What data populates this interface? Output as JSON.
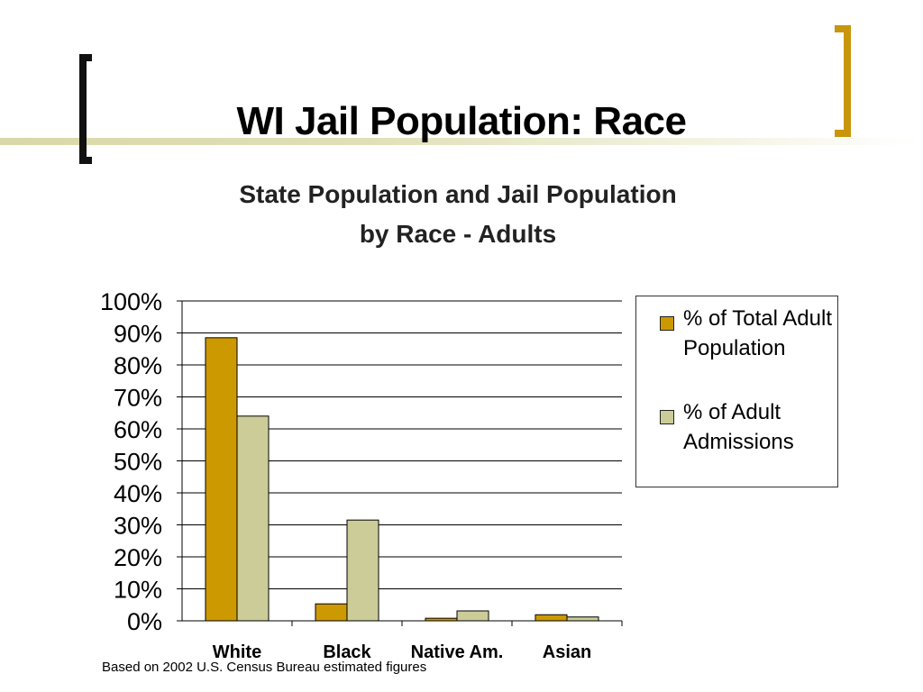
{
  "slide": {
    "title": "WI Jail Population: Race",
    "footnote": "Based on 2002 U.S. Census Bureau estimated figures"
  },
  "colors": {
    "left_bracket": "#111111",
    "right_bracket": "#c8960a",
    "series_population": "#cc9900",
    "series_admissions": "#cccc99"
  },
  "chart_data": {
    "type": "bar",
    "title_lines": [
      "State Population and Jail Population",
      "by Race - Adults"
    ],
    "categories": [
      "White",
      "Black",
      "Native Am.",
      "Asian"
    ],
    "series": [
      {
        "name": "% of Total Adult Population",
        "values": [
          88.5,
          5.3,
          0.8,
          1.9
        ]
      },
      {
        "name": "% of Adult Admissions",
        "values": [
          64,
          31.5,
          3.1,
          1.2
        ]
      }
    ],
    "ylim": [
      0,
      100
    ],
    "yticks": [
      "0%",
      "10%",
      "20%",
      "30%",
      "40%",
      "50%",
      "60%",
      "70%",
      "80%",
      "90%",
      "100%"
    ],
    "grid": true,
    "legend_position": "right"
  }
}
